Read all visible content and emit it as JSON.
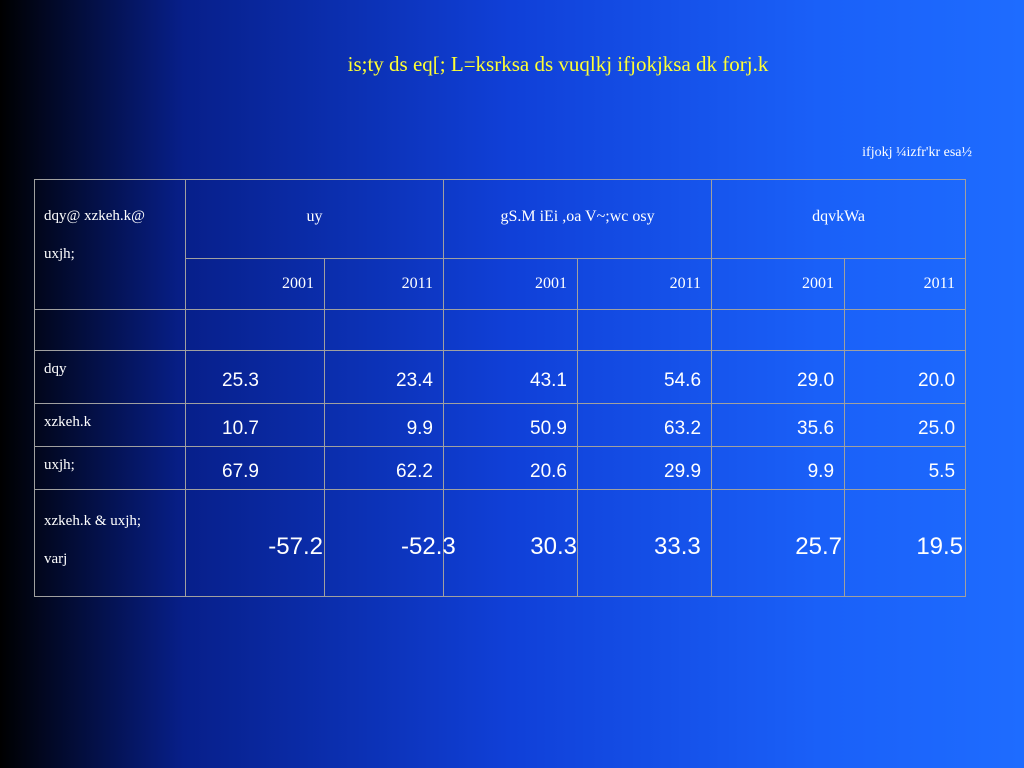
{
  "title": "is;ty ds eq[; L=ksrksa ds vuqlkj ifjokjksa dk forj.k",
  "note": "ifjokj ¼izfr'kr esa½",
  "table": {
    "corner": [
      "dqy@ xzkeh.k@",
      "uxjh;"
    ],
    "groups": [
      "uy",
      "gS.M iEi ,oa V~;wc osy",
      "dqvkWa"
    ],
    "years": [
      "2001",
      "2011",
      "2001",
      "2011",
      "2001",
      "2011"
    ],
    "rows": [
      {
        "label": [
          "dqy"
        ],
        "values": [
          "25.3",
          "23.4",
          "43.1",
          "54.6",
          "29.0",
          "20.0"
        ]
      },
      {
        "label": [
          "xzkeh.k"
        ],
        "values": [
          "10.7",
          "9.9",
          "50.9",
          "63.2",
          "35.6",
          "25.0"
        ]
      },
      {
        "label": [
          "uxjh;"
        ],
        "values": [
          "67.9",
          "62.2",
          "20.6",
          "29.9",
          "9.9",
          "5.5"
        ]
      },
      {
        "label": [
          "xzkeh.k & uxjh;",
          "varj"
        ],
        "values": [
          "-57.2",
          "-52.3",
          "30.3",
          "33.3",
          "25.7",
          "19.5"
        ]
      }
    ]
  }
}
